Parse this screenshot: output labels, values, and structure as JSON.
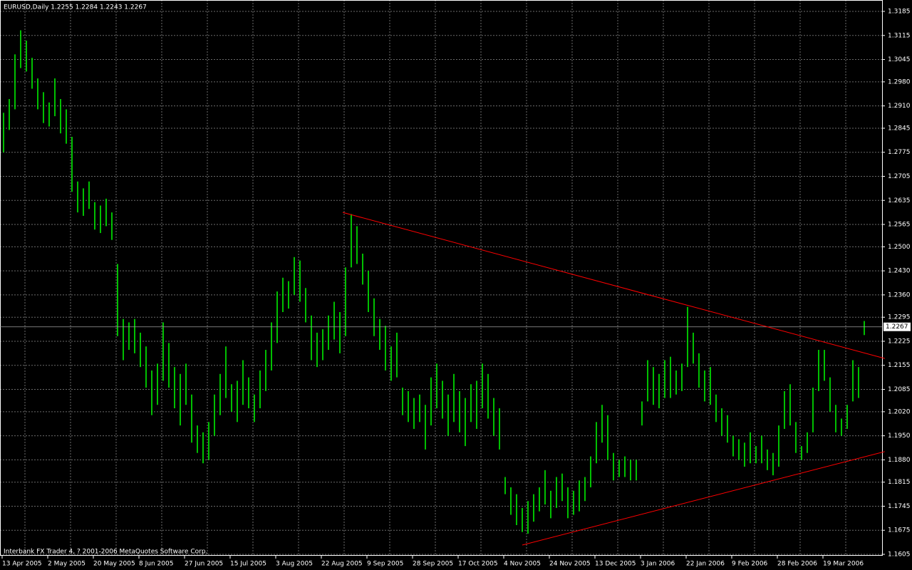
{
  "chart_data": {
    "type": "ohlc",
    "title": "EURUSD,Daily  1.2255 1.2284 1.2243 1.2267",
    "footer": "Interbank FX Trader 4, ? 2001-2006 MetaQuotes Software Corp.",
    "color": "#00ff00",
    "grid": true,
    "categories": [
      "13 Apr 2005",
      null,
      null,
      null,
      null,
      null,
      null,
      null,
      "2 May 2005",
      null,
      null,
      null,
      null,
      null,
      null,
      null,
      "20 May 2005",
      null,
      null,
      null,
      null,
      null,
      null,
      null,
      "8 Jun 2005",
      null,
      null,
      null,
      null,
      null,
      null,
      null,
      "27 Jun 2005",
      null,
      null,
      null,
      null,
      null,
      null,
      null,
      "15 Jul 2005",
      null,
      null,
      null,
      null,
      null,
      null,
      null,
      "3 Aug 2005",
      null,
      null,
      null,
      null,
      null,
      null,
      null,
      "22 Aug 2005",
      null,
      null,
      null,
      null,
      null,
      null,
      null,
      "9 Sep 2005",
      null,
      null,
      null,
      null,
      null,
      null,
      null,
      "28 Sep 2005",
      null,
      null,
      null,
      null,
      null,
      null,
      null,
      "17 Oct 2005",
      null,
      null,
      null,
      null,
      null,
      null,
      null,
      "4 Nov 2005",
      null,
      null,
      null,
      null,
      null,
      null,
      null,
      "24 Nov 2005",
      null,
      null,
      null,
      null,
      null,
      null,
      null,
      "13 Dec 2005",
      null,
      null,
      null,
      null,
      null,
      null,
      null,
      "3 Jan 2006",
      null,
      null,
      null,
      null,
      null,
      null,
      null,
      "22 Jan 2006",
      null,
      null,
      null,
      null,
      null,
      null,
      null,
      "9 Feb 2006",
      null,
      null,
      null,
      null,
      null,
      null,
      null,
      "28 Feb 2006",
      null,
      null,
      null,
      null,
      null,
      null,
      null,
      "19 Mar 2006",
      null,
      null,
      null,
      null,
      null,
      null,
      null
    ],
    "high": [
      1.289,
      1.293,
      1.306,
      1.313,
      1.31,
      1.305,
      1.299,
      1.295,
      1.292,
      1.299,
      1.293,
      1.29,
      1.282,
      1.269,
      1.267,
      1.269,
      1.263,
      1.262,
      1.264,
      1.26,
      1.245,
      1.229,
      1.228,
      1.229,
      1.225,
      1.221,
      1.214,
      1.216,
      1.228,
      1.222,
      1.215,
      1.213,
      1.216,
      1.207,
      1.198,
      1.196,
      1.199,
      1.207,
      1.213,
      1.221,
      1.21,
      1.211,
      1.217,
      1.212,
      1.207,
      1.214,
      1.22,
      1.228,
      1.237,
      1.241,
      1.24,
      1.247,
      1.246,
      1.238,
      1.23,
      1.225,
      1.226,
      1.23,
      1.234,
      1.231,
      1.244,
      1.2595,
      1.256,
      1.248,
      1.243,
      1.235,
      1.229,
      1.227,
      1.221,
      1.225,
      1.209,
      1.208,
      1.206,
      1.207,
      1.204,
      1.212,
      1.216,
      1.211,
      1.207,
      1.213,
      1.208,
      1.206,
      1.21,
      1.211,
      1.216,
      1.213,
      1.206,
      1.203,
      1.183,
      1.18,
      1.178,
      1.174,
      1.176,
      1.178,
      1.18,
      1.185,
      1.179,
      1.183,
      1.184,
      1.18,
      1.179,
      1.182,
      1.183,
      1.189,
      1.199,
      1.204,
      1.201,
      1.19,
      1.188,
      1.189,
      1.188,
      1.188,
      1.205,
      1.217,
      1.215,
      1.213,
      1.217,
      1.218,
      1.214,
      1.216,
      1.2325,
      1.225,
      1.219,
      1.214,
      1.215,
      1.207,
      1.203,
      1.201,
      1.195,
      1.194,
      1.193,
      1.196,
      1.192,
      1.195,
      1.191,
      1.19,
      1.198,
      1.208,
      1.21,
      1.199,
      1.192,
      1.196,
      1.209,
      1.22,
      1.22,
      1.212,
      1.204,
      1.2,
      1.204,
      1.217,
      1.215,
      1.2284
    ],
    "low": [
      1.2775,
      1.284,
      1.29,
      1.302,
      1.301,
      1.296,
      1.29,
      1.286,
      1.285,
      1.288,
      1.283,
      1.28,
      1.266,
      1.26,
      1.259,
      1.261,
      1.255,
      1.254,
      1.256,
      1.252,
      1.224,
      1.217,
      1.22,
      1.219,
      1.215,
      1.209,
      1.201,
      1.204,
      1.211,
      1.209,
      1.203,
      1.198,
      1.204,
      1.193,
      1.19,
      1.187,
      1.188,
      1.195,
      1.201,
      1.206,
      1.202,
      1.199,
      1.204,
      1.203,
      1.199,
      1.203,
      1.208,
      1.214,
      1.222,
      1.231,
      1.232,
      1.236,
      1.234,
      1.228,
      1.217,
      1.215,
      1.217,
      1.22,
      1.223,
      1.219,
      1.224,
      1.244,
      1.245,
      1.239,
      1.231,
      1.224,
      1.22,
      1.214,
      1.211,
      1.212,
      1.201,
      1.199,
      1.197,
      1.199,
      1.191,
      1.198,
      1.203,
      1.2,
      1.195,
      1.199,
      1.196,
      1.192,
      1.199,
      1.197,
      1.203,
      1.2,
      1.195,
      1.191,
      1.178,
      1.172,
      1.169,
      1.167,
      1.1665,
      1.17,
      1.173,
      1.175,
      1.171,
      1.174,
      1.176,
      1.171,
      1.172,
      1.173,
      1.176,
      1.18,
      1.187,
      1.193,
      1.188,
      1.182,
      1.183,
      1.183,
      1.182,
      1.182,
      1.198,
      1.205,
      1.204,
      1.203,
      1.206,
      1.206,
      1.207,
      1.208,
      1.215,
      1.216,
      1.209,
      1.205,
      1.204,
      1.199,
      1.195,
      1.193,
      1.189,
      1.188,
      1.186,
      1.187,
      1.187,
      1.187,
      1.185,
      1.1835,
      1.186,
      1.197,
      1.198,
      1.19,
      1.188,
      1.19,
      1.196,
      1.208,
      1.211,
      1.202,
      1.196,
      1.195,
      1.197,
      1.205,
      1.206,
      1.2243
    ],
    "current_price": 1.2267,
    "ylim": [
      1.1605,
      1.3185
    ],
    "yticks": [
      1.3185,
      1.3115,
      1.3045,
      {
        "value": 1.298,
        "label": "1.2980"
      },
      {
        "value": 1.291,
        "label": "1.2910"
      },
      1.2845,
      1.2775,
      1.2705,
      1.2635,
      1.2565,
      {
        "value": 1.25,
        "label": "1.2500"
      },
      {
        "value": 1.243,
        "label": "1.2430"
      },
      {
        "value": 1.236,
        "label": "1.2360"
      },
      1.2295,
      1.2225,
      1.2155,
      1.2085,
      {
        "value": 1.202,
        "label": "1.2020"
      },
      {
        "value": 1.195,
        "label": "1.1950"
      },
      {
        "value": 1.188,
        "label": "1.1880"
      },
      1.1815,
      1.1745,
      1.1675,
      1.1605
    ],
    "trendlines": [
      {
        "color": "#ff0000",
        "x": [
          59.5,
          154.6
        ],
        "y": [
          1.26,
          1.2175
        ]
      },
      {
        "color": "#ff0000",
        "x": [
          91,
          154.6
        ],
        "y": [
          1.1632,
          1.1904
        ]
      }
    ]
  }
}
